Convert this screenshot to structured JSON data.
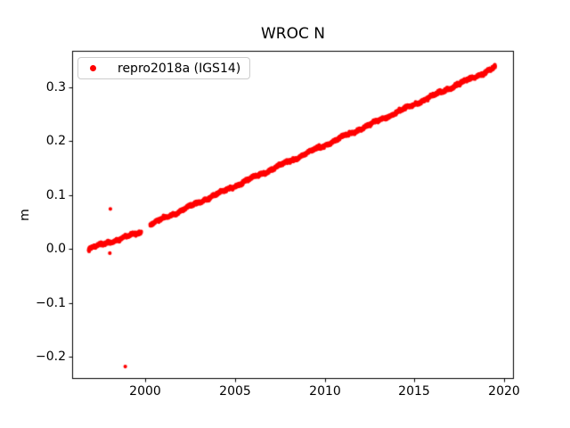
{
  "chart_data": {
    "type": "scatter",
    "title": "WROC N",
    "xlabel": "",
    "ylabel": "m",
    "background": "#ffffff",
    "grid": false,
    "axis_color": "#000000",
    "xlim": [
      1995.93,
      2020.54
    ],
    "ylim": [
      -0.241,
      0.367
    ],
    "xticks": {
      "values": [
        2000,
        2005,
        2010,
        2015,
        2020
      ],
      "labels": [
        "2000",
        "2005",
        "2010",
        "2015",
        "2020"
      ]
    },
    "yticks": {
      "values": [
        -0.2,
        -0.1,
        0.0,
        0.1,
        0.2,
        0.3
      ],
      "labels": [
        "−0.2",
        "−0.1",
        "0.0",
        "0.1",
        "0.2",
        "0.3"
      ]
    },
    "legend": {
      "position": "upper left",
      "entries": [
        {
          "label": "repro2018a (IGS14)",
          "marker": "dot",
          "color": "#ff0000"
        }
      ]
    },
    "series": [
      {
        "name": "repro2018a (IGS14)",
        "color": "#ff0000",
        "marker": "dot",
        "marker_radius_px": 2.1,
        "samples_per_year": 365,
        "noise_sd": 0.0012,
        "segments": [
          {
            "x_start": 1996.85,
            "x_end": 1999.78,
            "y_start": 0.0,
            "y_end": 0.031
          },
          {
            "x_start": 2000.28,
            "x_end": 2019.5,
            "y_start": 0.045,
            "y_end": 0.336
          }
        ],
        "gaps": [
          {
            "x_start": 1999.78,
            "x_end": 2000.28
          }
        ],
        "outliers": [
          [
            1998.06,
            0.074
          ],
          [
            1998.03,
            -0.008
          ],
          [
            1998.89,
            -0.218
          ]
        ]
      }
    ]
  }
}
